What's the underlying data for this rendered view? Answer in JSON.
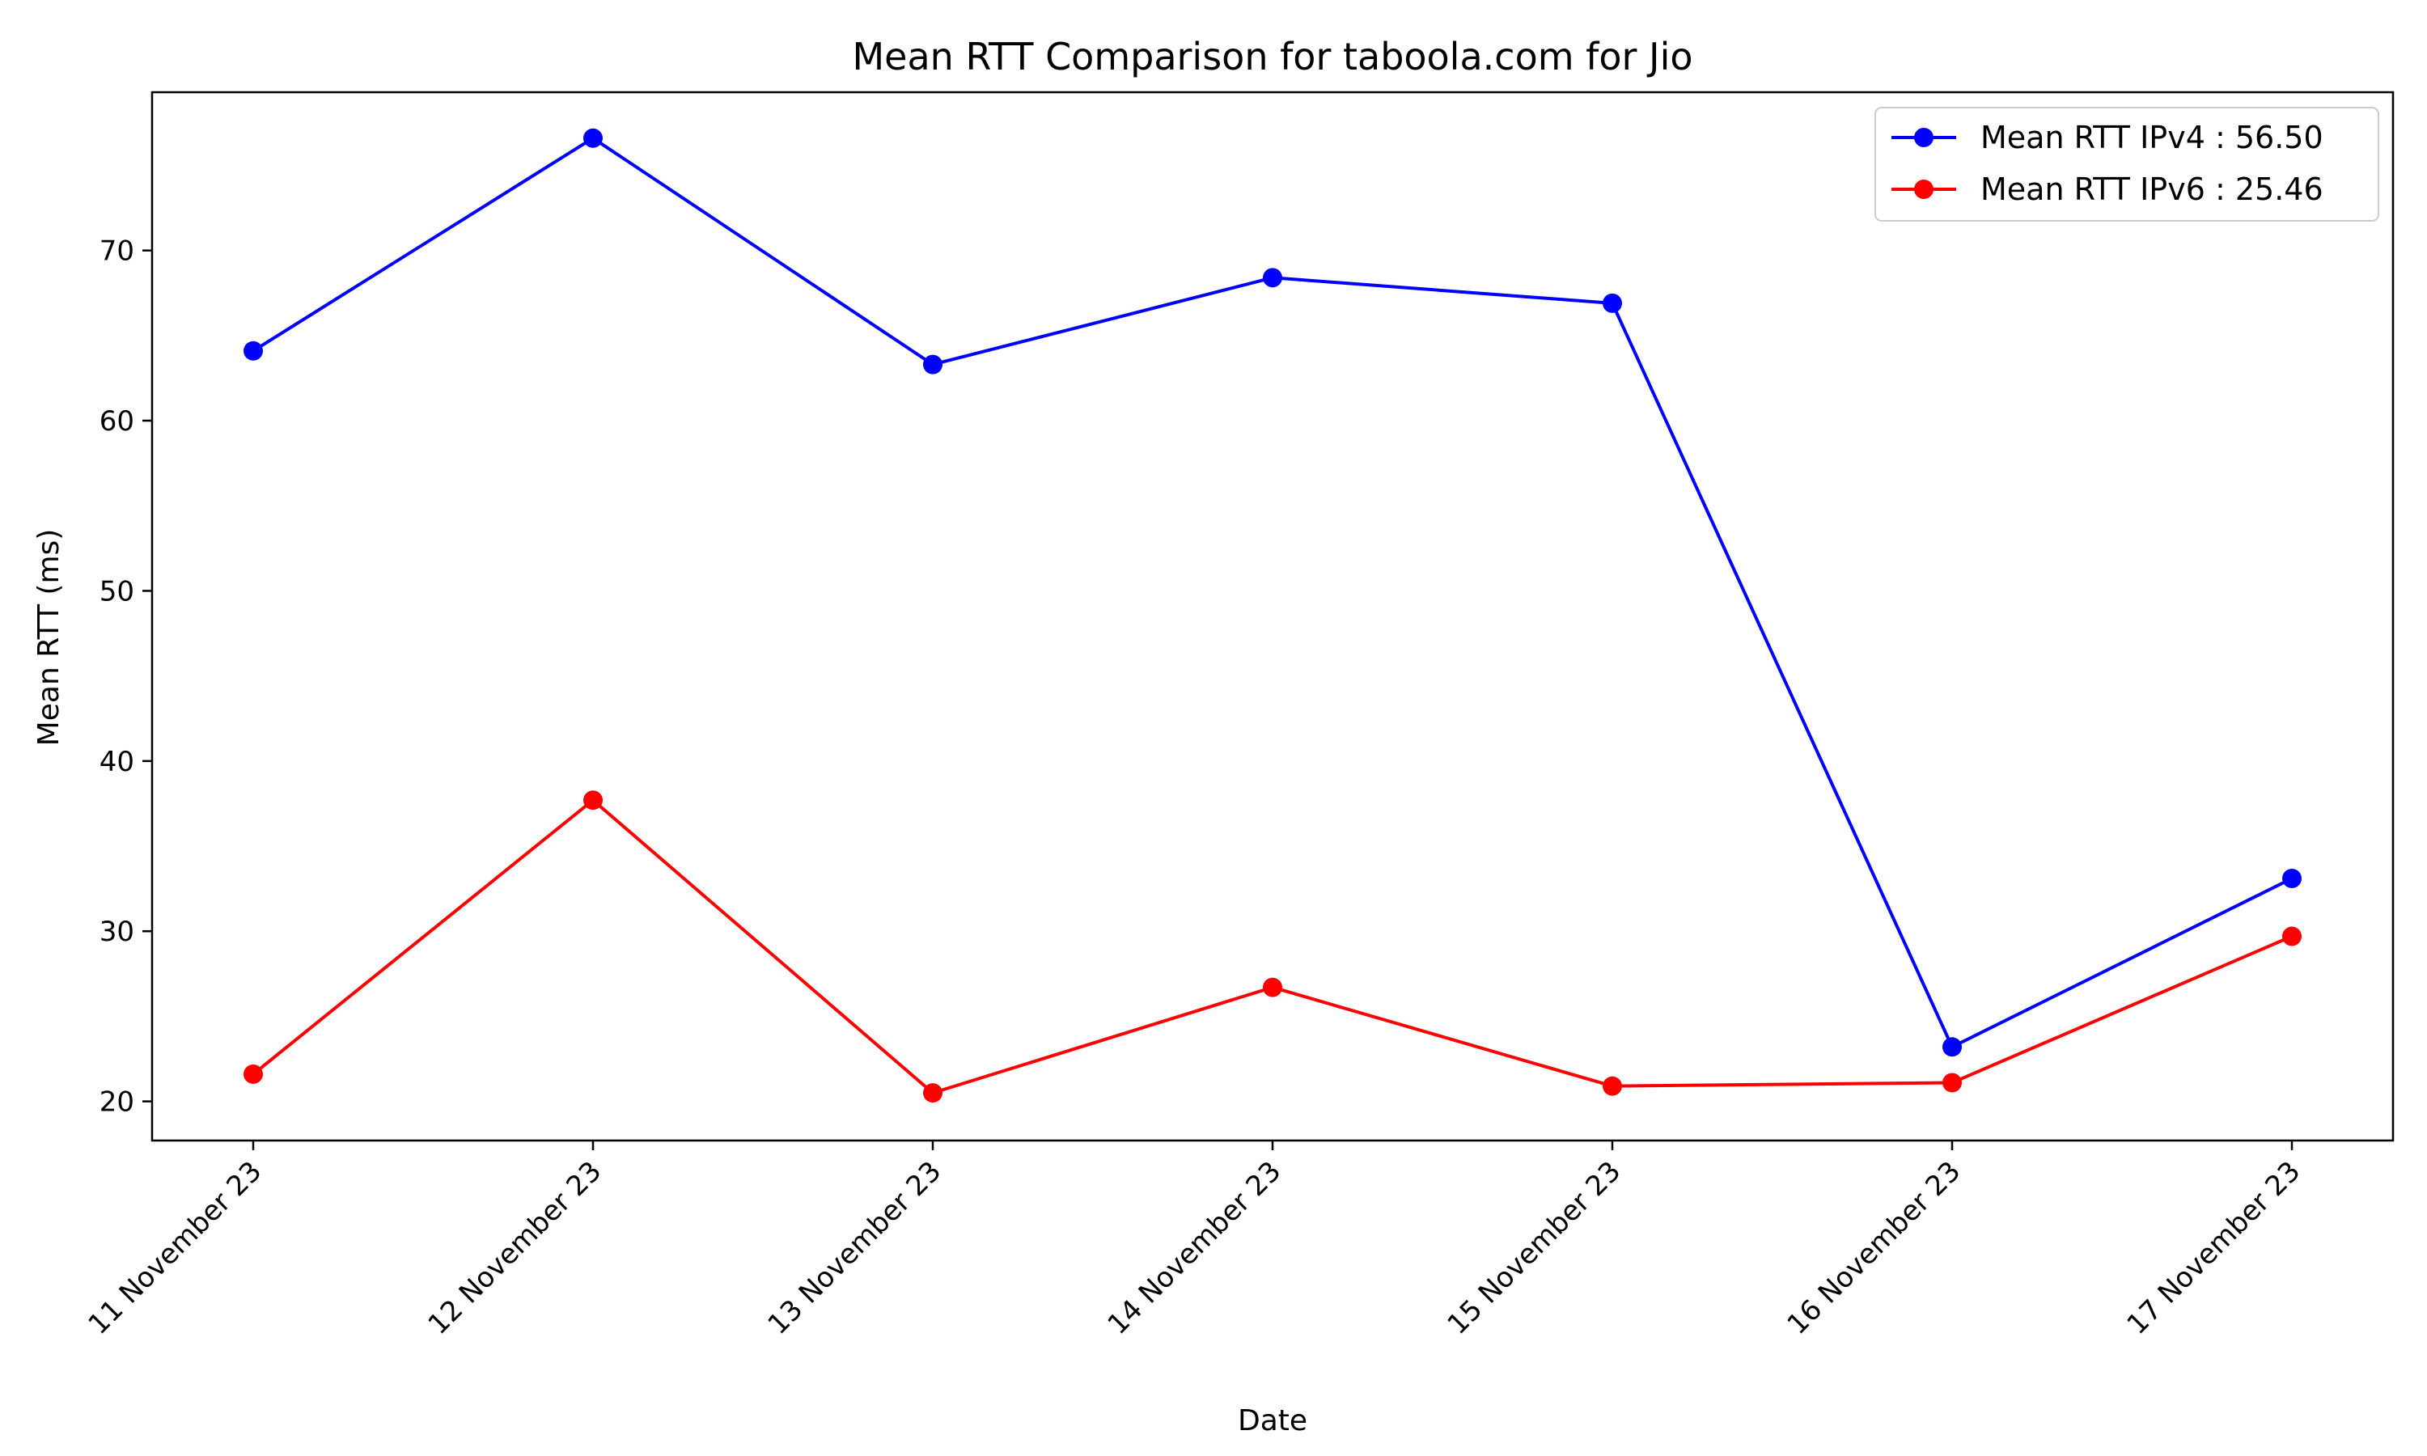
{
  "chart_data": {
    "type": "line",
    "title": "Mean RTT Comparison for taboola.com for Jio",
    "xlabel": "Date",
    "ylabel": "Mean RTT (ms)",
    "categories": [
      "11 November 23",
      "12 November 23",
      "13 November 23",
      "14 November 23",
      "15 November 23",
      "16 November 23",
      "17 November 23"
    ],
    "ylim": [
      17.7,
      79.3
    ],
    "yticks": [
      20,
      30,
      40,
      50,
      60,
      70
    ],
    "grid": false,
    "legend_position": "top-right",
    "series": [
      {
        "name": "Mean RTT IPv4 : 56.50",
        "color": "#0000ff",
        "values": [
          64.1,
          76.6,
          63.3,
          68.4,
          66.9,
          23.2,
          33.1
        ]
      },
      {
        "name": "Mean RTT IPv6 : 25.46",
        "color": "#ff0000",
        "values": [
          21.6,
          37.7,
          20.5,
          26.7,
          20.9,
          21.1,
          29.7
        ]
      }
    ]
  }
}
